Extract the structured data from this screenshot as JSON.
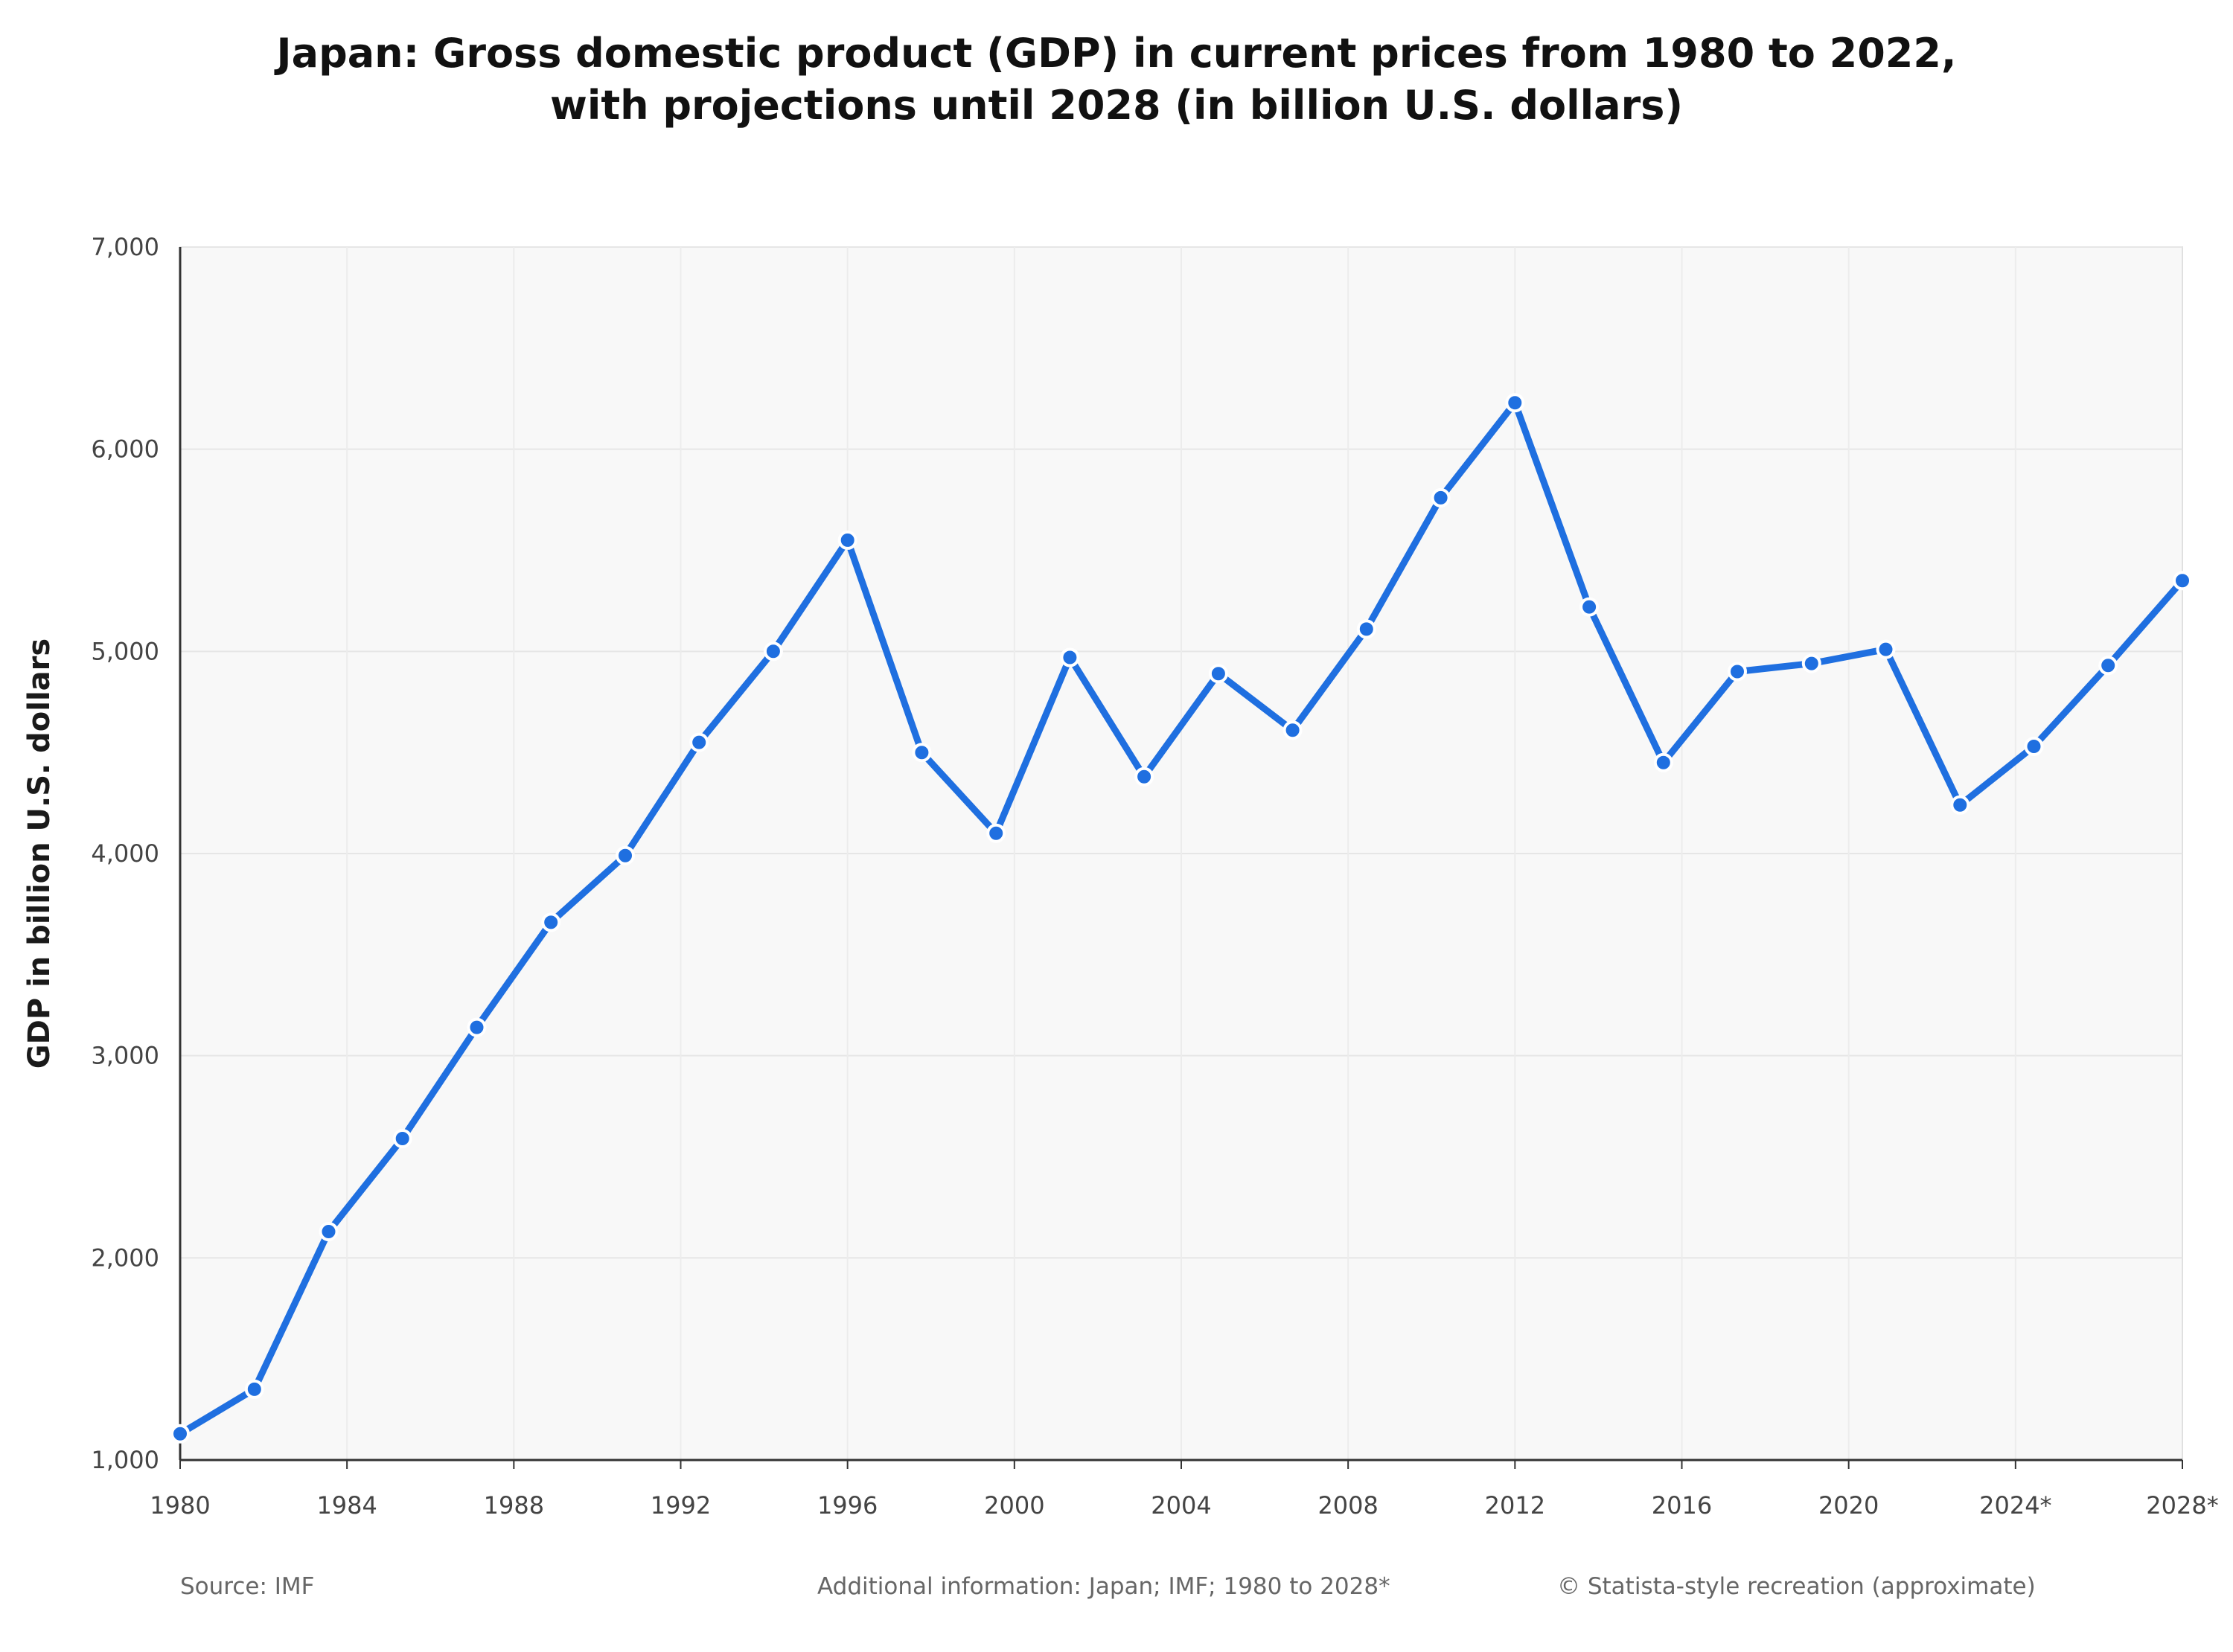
{
  "title_line1": "Japan: Gross domestic product (GDP) in current prices from 1980 to 2022,",
  "title_line2": "with projections until 2028 (in billion U.S. dollars)",
  "footer": {
    "source": "Source: IMF",
    "additional": "Additional information: Japan; IMF; 1980 to 2028*",
    "copyright": "© Statista-style recreation (approximate)"
  },
  "colors": {
    "line": "#1f6fe0",
    "plot_bg": "#f8f8f8",
    "grid": "#e6e6e6"
  },
  "chart_data": {
    "type": "line",
    "title": "Japan: Gross domestic product (GDP) in current prices from 1980 to 2022, with projections until 2028 (in billion U.S. dollars)",
    "xlabel": "",
    "ylabel": "GDP in billion U.S. dollars",
    "xlim": [
      1980,
      2028
    ],
    "ylim": [
      1000,
      7000
    ],
    "grid": true,
    "x_ticks": [
      {
        "value": 1980,
        "label": "1980"
      },
      {
        "value": 1984,
        "label": "1984"
      },
      {
        "value": 1988,
        "label": "1988"
      },
      {
        "value": 1992,
        "label": "1992"
      },
      {
        "value": 1996,
        "label": "1996"
      },
      {
        "value": 2000,
        "label": "2000"
      },
      {
        "value": 2004,
        "label": "2004"
      },
      {
        "value": 2008,
        "label": "2008"
      },
      {
        "value": 2012,
        "label": "2012"
      },
      {
        "value": 2016,
        "label": "2016"
      },
      {
        "value": 2020,
        "label": "2020"
      },
      {
        "value": 2024,
        "label": "2024*"
      },
      {
        "value": 2028,
        "label": "2028*"
      }
    ],
    "y_ticks": [
      {
        "value": 1000,
        "label": "1,000"
      },
      {
        "value": 2000,
        "label": "2,000"
      },
      {
        "value": 3000,
        "label": "3,000"
      },
      {
        "value": 4000,
        "label": "4,000"
      },
      {
        "value": 5000,
        "label": "5,000"
      },
      {
        "value": 6000,
        "label": "6,000"
      },
      {
        "value": 7000,
        "label": "7,000"
      }
    ],
    "series": [
      {
        "x": [
          1980,
          1981.78,
          1983.56,
          1985.33,
          1987.11,
          1988.89,
          1990.67,
          1992.44,
          1994.22,
          1996,
          1997.78,
          1999.56,
          2001.33,
          2003.11,
          2004.89,
          2006.67,
          2008.44,
          2010.22,
          2012,
          2013.78,
          2015.56,
          2017.33,
          2019.11,
          2020.89,
          2022.67,
          2024.44,
          2026.22,
          2028
        ],
        "values": [
          1130,
          1350,
          2130,
          2590,
          3140,
          3660,
          3990,
          4550,
          5000,
          5550,
          4500,
          4100,
          4970,
          4380,
          4890,
          4610,
          5110,
          5760,
          6230,
          5220,
          4450,
          4900,
          4940,
          5010,
          4240,
          4530,
          4930,
          5350
        ]
      }
    ]
  }
}
